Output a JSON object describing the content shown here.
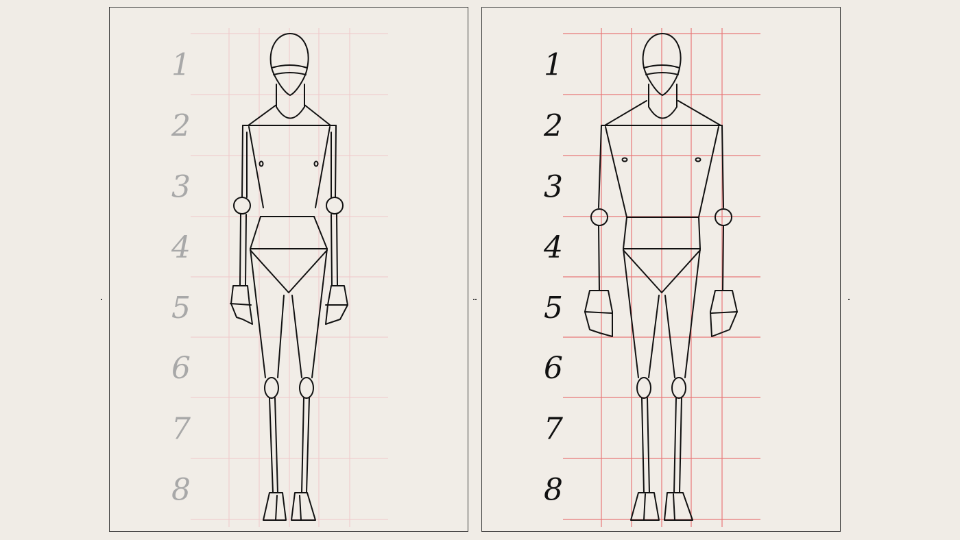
{
  "panels": [
    {
      "id": "left",
      "numbers": [
        "1",
        "2",
        "3",
        "4",
        "5",
        "6",
        "7",
        "8"
      ],
      "number_color": "#a8a8a8",
      "grid_color": "#f0c8c8"
    },
    {
      "id": "right",
      "numbers": [
        "1",
        "2",
        "3",
        "4",
        "5",
        "6",
        "7",
        "8"
      ],
      "number_color": "#111111",
      "grid_color": "#e87878"
    }
  ],
  "stroke_color": "#111111"
}
